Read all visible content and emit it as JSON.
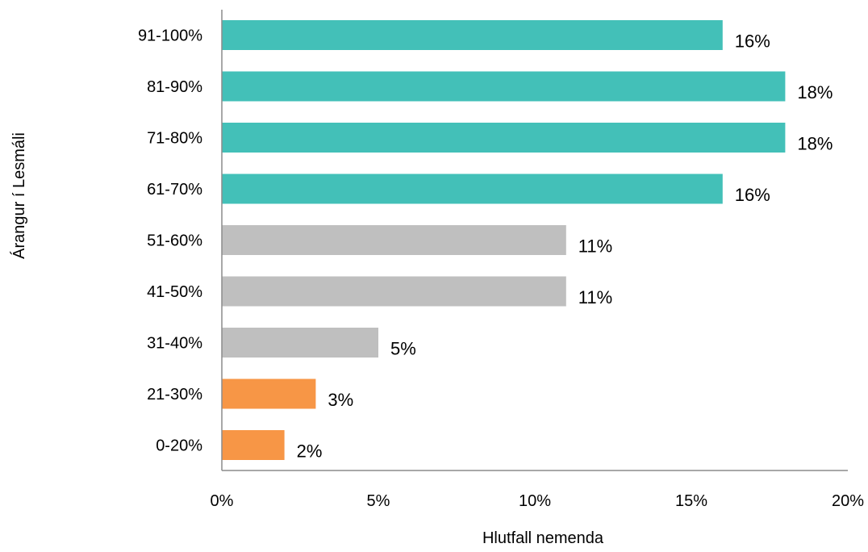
{
  "chart_data": {
    "type": "bar",
    "orientation": "horizontal",
    "title": "",
    "xlabel": "Hlutfall nemenda",
    "ylabel": "Árangur í Lesmáli",
    "xlim": [
      0,
      20
    ],
    "x_ticks": [
      {
        "value": 0,
        "label": "0%"
      },
      {
        "value": 5,
        "label": "5%"
      },
      {
        "value": 10,
        "label": "10%"
      },
      {
        "value": 15,
        "label": "15%"
      },
      {
        "value": 20,
        "label": "20%"
      }
    ],
    "grid": false,
    "legend": "none",
    "bars": [
      {
        "category": "91-100%",
        "value": 16,
        "label": "16%",
        "color": "#43c0b8"
      },
      {
        "category": "81-90%",
        "value": 18,
        "label": "18%",
        "color": "#43c0b8"
      },
      {
        "category": "71-80%",
        "value": 18,
        "label": "18%",
        "color": "#43c0b8"
      },
      {
        "category": "61-70%",
        "value": 16,
        "label": "16%",
        "color": "#43c0b8"
      },
      {
        "category": "51-60%",
        "value": 11,
        "label": "11%",
        "color": "#bfbfbf"
      },
      {
        "category": "41-50%",
        "value": 11,
        "label": "11%",
        "color": "#bfbfbf"
      },
      {
        "category": "31-40%",
        "value": 5,
        "label": "5%",
        "color": "#bfbfbf"
      },
      {
        "category": "21-30%",
        "value": 3,
        "label": "3%",
        "color": "#f79646"
      },
      {
        "category": "0-20%",
        "value": 2,
        "label": "2%",
        "color": "#f79646"
      }
    ],
    "axis_color": "#8c8c8c"
  }
}
